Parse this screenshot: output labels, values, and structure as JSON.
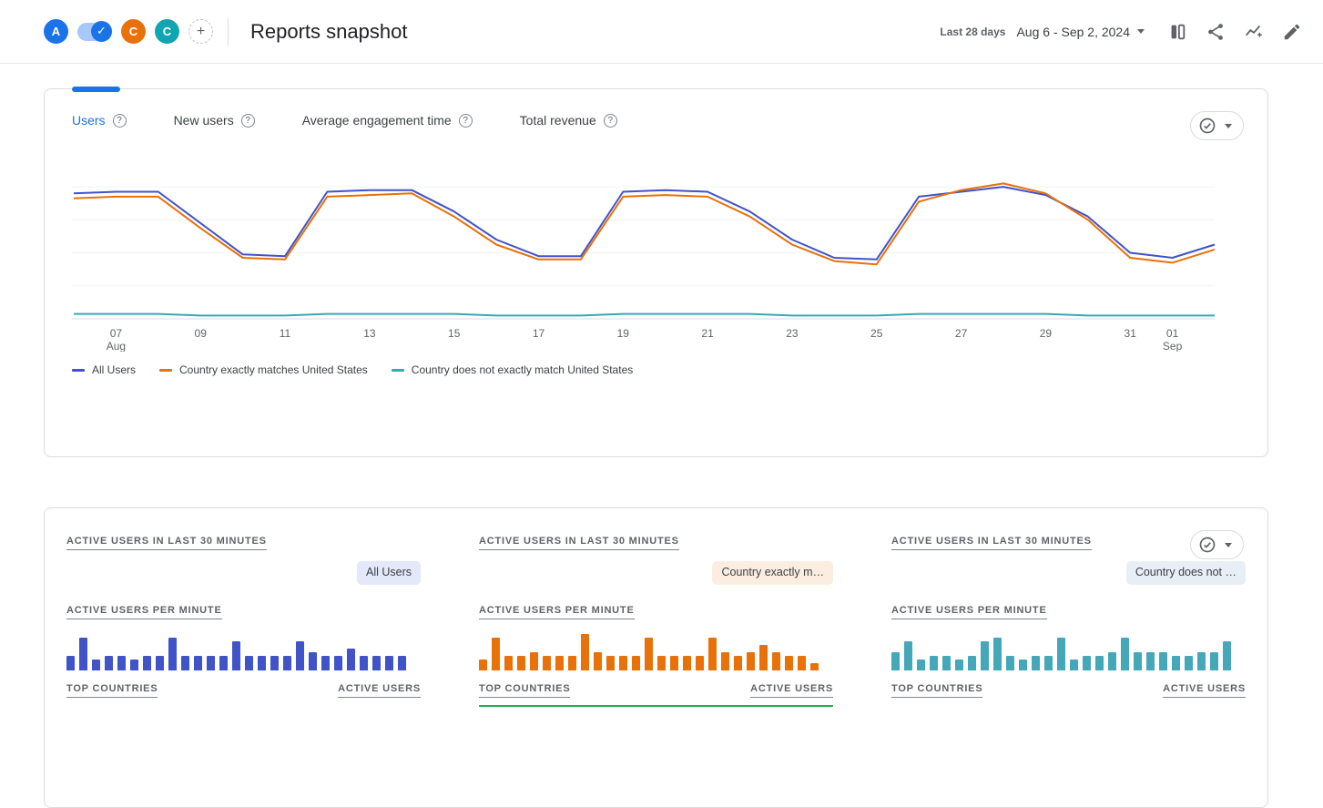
{
  "theme": {
    "accent": "#1a73e8",
    "border": "#dadce0",
    "text_secondary": "#5f6368"
  },
  "header": {
    "title": "Reports snapshot",
    "date_range_label": "Last 28 days",
    "date_range_value": "Aug 6 - Sep 2, 2024",
    "chips": [
      {
        "label": "A",
        "color": "#1a73e8"
      },
      {
        "label": "C",
        "color": "#e8710a"
      },
      {
        "label": "C",
        "color": "#12a4b0"
      }
    ],
    "toggle_check_glyph": "✓",
    "add_chip_label": "+",
    "action_icons": [
      "ab-compare-icon",
      "share-icon",
      "insights-icon",
      "edit-icon"
    ]
  },
  "metric_tabs": [
    {
      "label": "Users",
      "selected": true
    },
    {
      "label": "New users",
      "selected": false
    },
    {
      "label": "Average engagement time",
      "selected": false
    },
    {
      "label": "Total revenue",
      "selected": false
    }
  ],
  "help_glyph": "?",
  "chart_data": {
    "type": "line",
    "title": "Users trend, last 28 days",
    "x_dates": [
      "Aug 6",
      "Aug 7",
      "Aug 8",
      "Aug 9",
      "Aug 10",
      "Aug 11",
      "Aug 12",
      "Aug 13",
      "Aug 14",
      "Aug 15",
      "Aug 16",
      "Aug 17",
      "Aug 18",
      "Aug 19",
      "Aug 20",
      "Aug 21",
      "Aug 22",
      "Aug 23",
      "Aug 24",
      "Aug 25",
      "Aug 26",
      "Aug 27",
      "Aug 28",
      "Aug 29",
      "Aug 30",
      "Aug 31",
      "Sep 1",
      "Sep 2"
    ],
    "ylim": [
      0,
      85
    ],
    "gridline_values": [
      20,
      40,
      60,
      80
    ],
    "ticks": [
      {
        "i": 1,
        "label": "07",
        "sub": "Aug"
      },
      {
        "i": 3,
        "label": "09"
      },
      {
        "i": 5,
        "label": "11"
      },
      {
        "i": 7,
        "label": "13"
      },
      {
        "i": 9,
        "label": "15"
      },
      {
        "i": 11,
        "label": "17"
      },
      {
        "i": 13,
        "label": "19"
      },
      {
        "i": 15,
        "label": "21"
      },
      {
        "i": 17,
        "label": "23"
      },
      {
        "i": 19,
        "label": "25"
      },
      {
        "i": 21,
        "label": "27"
      },
      {
        "i": 23,
        "label": "29"
      },
      {
        "i": 25,
        "label": "31"
      },
      {
        "i": 26,
        "label": "01",
        "sub": "Sep"
      }
    ],
    "series": [
      {
        "name": "All Users",
        "color": "#4053c8",
        "values": [
          76,
          77,
          77,
          58,
          39,
          38,
          77,
          78,
          78,
          65,
          48,
          38,
          38,
          77,
          78,
          77,
          65,
          48,
          37,
          36,
          74,
          77,
          80,
          75,
          62,
          40,
          37,
          45
        ]
      },
      {
        "name": "Country exactly matches United States",
        "color": "#e8710a",
        "values": [
          73,
          74,
          74,
          55,
          37,
          36,
          74,
          75,
          76,
          62,
          45,
          36,
          36,
          74,
          75,
          74,
          62,
          45,
          35,
          33,
          71,
          78,
          82,
          76,
          60,
          37,
          34,
          42
        ]
      },
      {
        "name": "Country does not exactly match United States",
        "color": "#3aa7b7",
        "values": [
          3,
          3,
          3,
          2,
          2,
          2,
          3,
          3,
          3,
          3,
          2,
          2,
          2,
          3,
          3,
          3,
          3,
          2,
          2,
          2,
          3,
          3,
          3,
          3,
          2,
          2,
          2,
          2
        ]
      }
    ],
    "legend_position": "bottom"
  },
  "realtime_panels": [
    {
      "heading": "ACTIVE USERS IN LAST 30 MINUTES",
      "badge": "All Users",
      "badge_bg": "#e4e8fb",
      "per_minute_heading": "ACTIVE USERS PER MINUTE",
      "bar_color": "#4053c8",
      "per_minute_values": [
        4,
        9,
        3,
        4,
        4,
        3,
        4,
        4,
        9,
        4,
        4,
        4,
        4,
        8,
        4,
        4,
        4,
        4,
        8,
        5,
        4,
        4,
        6,
        4,
        4,
        4,
        4
      ],
      "top_countries_label": "TOP COUNTRIES",
      "active_users_label": "ACTIVE USERS"
    },
    {
      "heading": "ACTIVE USERS IN LAST 30 MINUTES",
      "badge": "Country exactly m…",
      "badge_bg": "#fbeee1",
      "per_minute_heading": "ACTIVE USERS PER MINUTE",
      "bar_color": "#e8710a",
      "divider_color": "#34a853",
      "per_minute_values": [
        3,
        9,
        4,
        4,
        5,
        4,
        4,
        4,
        10,
        5,
        4,
        4,
        4,
        9,
        4,
        4,
        4,
        4,
        9,
        5,
        4,
        5,
        7,
        5,
        4,
        4,
        2
      ],
      "top_countries_label": "TOP COUNTRIES",
      "active_users_label": "ACTIVE USERS"
    },
    {
      "heading": "ACTIVE USERS IN LAST 30 MINUTES",
      "badge": "Country does not …",
      "badge_bg": "#e8eef6",
      "per_minute_heading": "ACTIVE USERS PER MINUTE",
      "bar_color": "#45a8b8",
      "per_minute_values": [
        5,
        8,
        3,
        4,
        4,
        3,
        4,
        8,
        9,
        4,
        3,
        4,
        4,
        9,
        3,
        4,
        4,
        5,
        9,
        5,
        5,
        5,
        4,
        4,
        5,
        5,
        8
      ],
      "top_countries_label": "TOP COUNTRIES",
      "active_users_label": "ACTIVE USERS"
    }
  ]
}
